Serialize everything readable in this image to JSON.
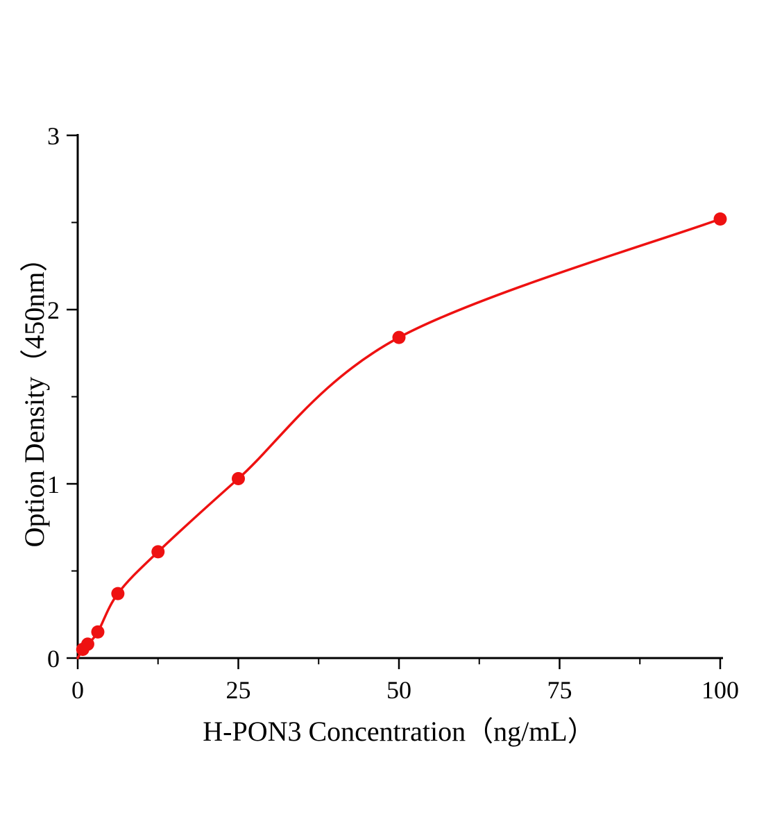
{
  "chart_data": {
    "type": "scatter",
    "title": "",
    "xlabel": "H-PON3 Concentration（ng/mL）",
    "ylabel": "Option Density（450nm）",
    "xlim": [
      0,
      100
    ],
    "ylim": [
      0,
      3
    ],
    "x_ticks": [
      0,
      25,
      50,
      75,
      100
    ],
    "x_minor_ticks": [
      12.5,
      37.5,
      62.5,
      87.5
    ],
    "y_ticks": [
      0,
      1,
      2,
      3
    ],
    "y_minor_ticks": [
      0.5,
      1.5,
      2.5
    ],
    "grid": false,
    "legend": "none",
    "axis_color": "#000000",
    "series": [
      {
        "name": "H-PON3 standard curve",
        "color": "#ee1111",
        "marker": "circle",
        "curve": "smooth",
        "curve_start": {
          "x": 0,
          "y": 0.0
        },
        "points": [
          {
            "x": 0.78,
            "y": 0.05
          },
          {
            "x": 1.56,
            "y": 0.08
          },
          {
            "x": 3.13,
            "y": 0.15
          },
          {
            "x": 6.25,
            "y": 0.37
          },
          {
            "x": 12.5,
            "y": 0.61
          },
          {
            "x": 25,
            "y": 1.03
          },
          {
            "x": 50,
            "y": 1.84
          },
          {
            "x": 100,
            "y": 2.52
          }
        ]
      }
    ]
  }
}
